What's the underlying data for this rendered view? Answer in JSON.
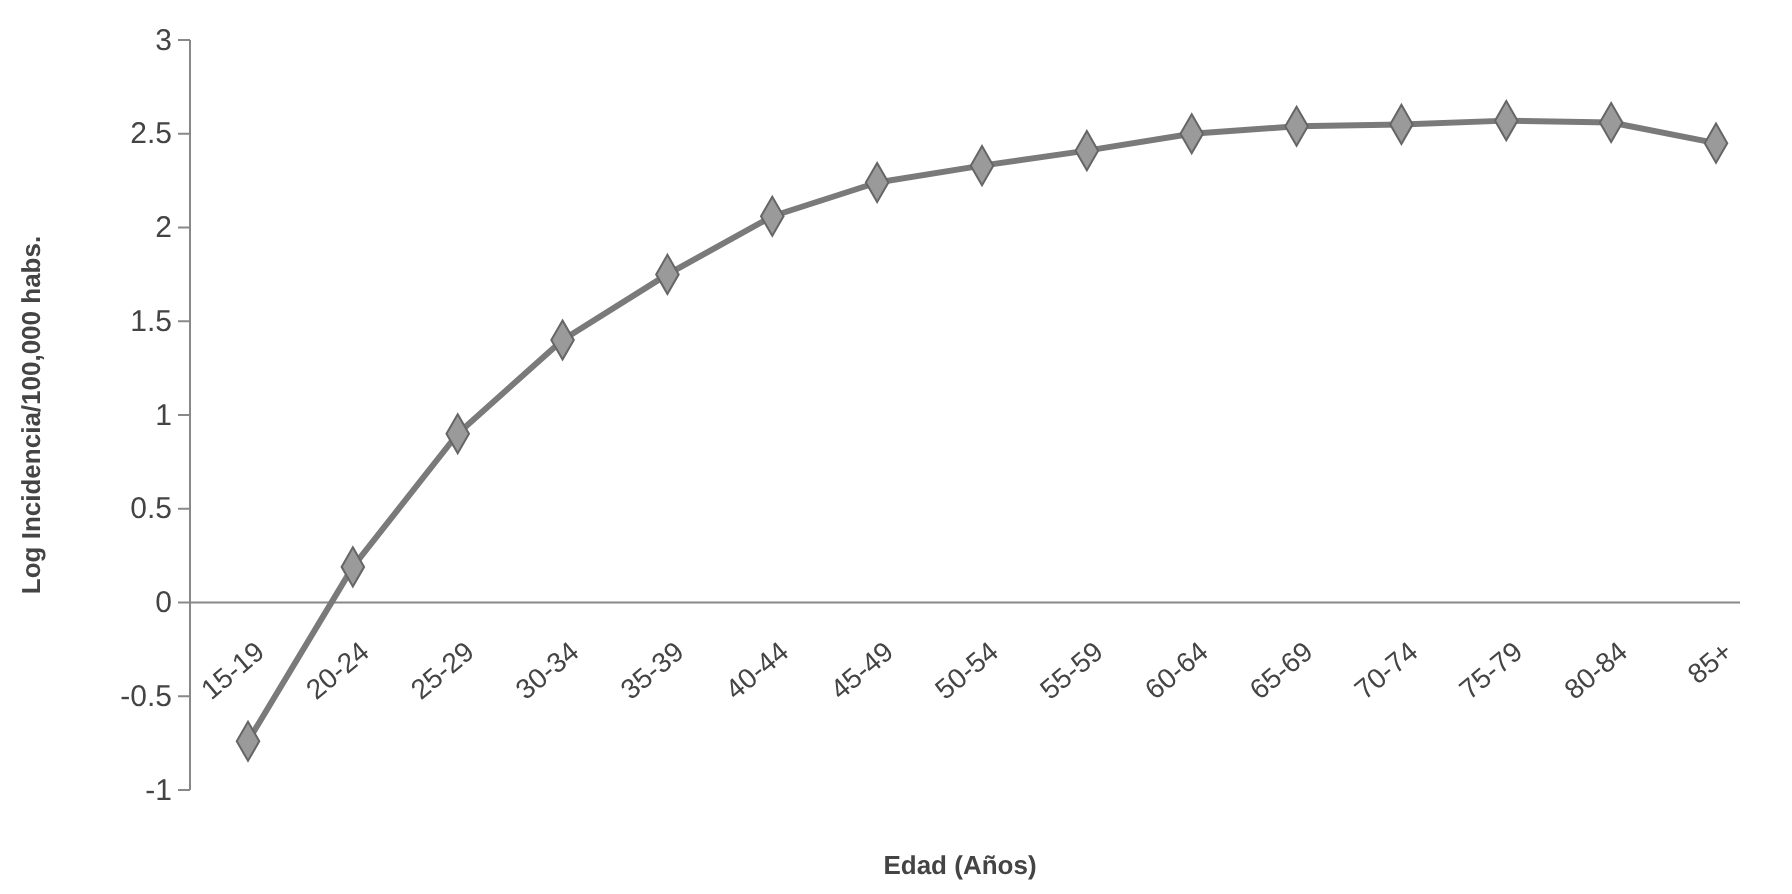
{
  "chart_data": {
    "type": "line",
    "xlabel": "Edad (Años)",
    "ylabel": "Log Incidencia/100,000 habs.",
    "categories": [
      "15-19",
      "20-24",
      "25-29",
      "30-34",
      "35-39",
      "40-44",
      "45-49",
      "50-54",
      "55-59",
      "60-64",
      "65-69",
      "70-74",
      "75-79",
      "80-84",
      "85+"
    ],
    "series": [
      {
        "color": "#7a7a7a",
        "values": [
          -0.74,
          0.19,
          0.9,
          1.4,
          1.75,
          2.06,
          2.24,
          2.33,
          2.41,
          2.5,
          2.54,
          2.55,
          2.57,
          2.56,
          2.45
        ]
      }
    ],
    "ylim": [
      -1,
      3
    ],
    "yticks": [
      -1,
      -0.5,
      0,
      0.5,
      1,
      1.5,
      2,
      2.5,
      3
    ],
    "grid": false,
    "marker": "diamond",
    "line_style": "solid"
  }
}
